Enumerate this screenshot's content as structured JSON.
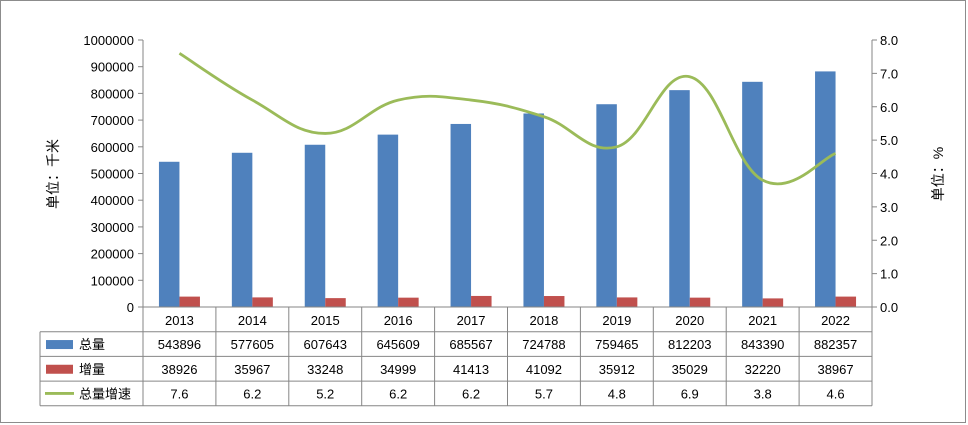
{
  "chart_data": {
    "type": "bar",
    "categories": [
      "2013",
      "2014",
      "2015",
      "2016",
      "2017",
      "2018",
      "2019",
      "2020",
      "2021",
      "2022"
    ],
    "series": [
      {
        "name": "总量",
        "kind": "bar",
        "axis": "left",
        "color": "#4F81BD",
        "values": [
          543896,
          577605,
          607643,
          645609,
          685567,
          724788,
          759465,
          812203,
          843390,
          882357
        ]
      },
      {
        "name": "增量",
        "kind": "bar",
        "axis": "left",
        "color": "#C0504D",
        "values": [
          38926,
          35967,
          33248,
          34999,
          41413,
          41092,
          35912,
          35029,
          32220,
          38967
        ]
      },
      {
        "name": "总量增速",
        "kind": "line",
        "axis": "right",
        "color": "#9BBB59",
        "values": [
          7.6,
          6.2,
          5.2,
          6.2,
          6.2,
          5.7,
          4.8,
          6.9,
          3.8,
          4.6
        ]
      }
    ],
    "ylabel": "单位：千米",
    "y2label": "单位：%",
    "ylim": [
      0,
      1000000
    ],
    "y2lim": [
      0,
      8
    ],
    "yticks": [
      "0",
      "100000",
      "200000",
      "300000",
      "400000",
      "500000",
      "600000",
      "700000",
      "800000",
      "900000",
      "1000000"
    ],
    "y2ticks": [
      "0.0",
      "1.0",
      "2.0",
      "3.0",
      "4.0",
      "5.0",
      "6.0",
      "7.0",
      "8.0"
    ],
    "grid": false,
    "legend": "data-table"
  }
}
